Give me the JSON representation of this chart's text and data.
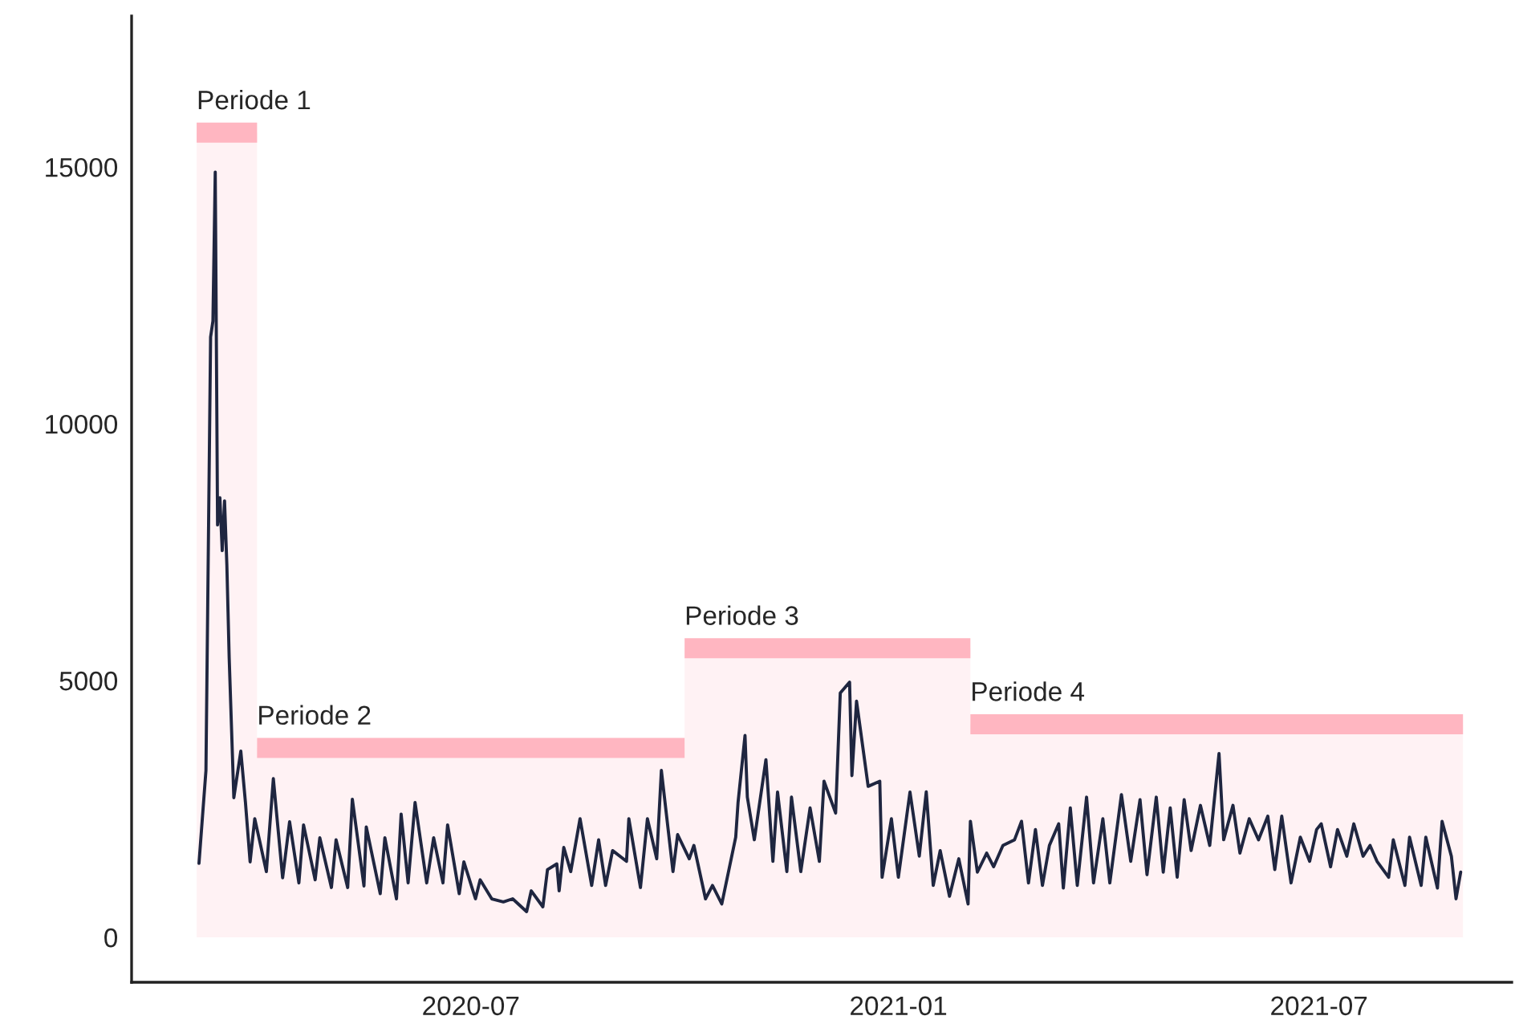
{
  "chart_data": {
    "type": "line",
    "xlim": [
      "2020-02-06",
      "2021-09-22"
    ],
    "xticks": [
      {
        "value": "2020-07-01",
        "label": "2020-07"
      },
      {
        "value": "2021-01-01",
        "label": "2021-01"
      },
      {
        "value": "2021-07-01",
        "label": "2021-07"
      }
    ],
    "ylim": [
      -875,
      17940
    ],
    "yticks": [
      0,
      5000,
      10000,
      15000
    ],
    "grid": false,
    "legend": false,
    "annotations": [
      {
        "text": "Periode 1",
        "x": "2020-03-05",
        "y": 15670
      },
      {
        "text": "Periode 2",
        "x": "2020-03-31",
        "y": 3690
      },
      {
        "text": "Periode 3",
        "x": "2020-10-01",
        "y": 5630
      },
      {
        "text": "Periode 4",
        "x": "2021-02-01",
        "y": 4150
      }
    ],
    "series": [
      {
        "type": "area",
        "color": "#ffb6c1",
        "x": [
          "2020-03-05",
          "2020-03-31",
          "2020-03-31",
          "2020-10-01",
          "2020-10-01",
          "2021-02-01",
          "2021-02-01",
          "2021-09-01"
        ],
        "values": [
          15670,
          15670,
          3690,
          3690,
          5630,
          5630,
          4150,
          4150
        ]
      },
      {
        "color": "#1f2640",
        "x": [
          "2020-03-06",
          "2020-03-09",
          "2020-03-11",
          "2020-03-12",
          "2020-03-13",
          "2020-03-14",
          "2020-03-15",
          "2020-03-16",
          "2020-03-17",
          "2020-03-18",
          "2020-03-19",
          "2020-03-21",
          "2020-03-24",
          "2020-03-26",
          "2020-03-28",
          "2020-03-30",
          "2020-04-01",
          "2020-04-04",
          "2020-04-07",
          "2020-04-11",
          "2020-04-14",
          "2020-04-18",
          "2020-04-20",
          "2020-04-25",
          "2020-04-27",
          "2020-05-02",
          "2020-05-04",
          "2020-05-09",
          "2020-05-11",
          "2020-05-16",
          "2020-05-17",
          "2020-05-23",
          "2020-05-25",
          "2020-05-30",
          "2020-06-01",
          "2020-06-04",
          "2020-06-07",
          "2020-06-12",
          "2020-06-15",
          "2020-06-19",
          "2020-06-21",
          "2020-06-26",
          "2020-06-28",
          "2020-07-03",
          "2020-07-05",
          "2020-07-10",
          "2020-07-15",
          "2020-07-19",
          "2020-07-25",
          "2020-07-27",
          "2020-08-01",
          "2020-08-03",
          "2020-08-07",
          "2020-08-08",
          "2020-08-10",
          "2020-08-13",
          "2020-08-17",
          "2020-08-22",
          "2020-08-25",
          "2020-08-28",
          "2020-08-31",
          "2020-09-06",
          "2020-09-07",
          "2020-09-12",
          "2020-09-15",
          "2020-09-19",
          "2020-09-21",
          "2020-09-26",
          "2020-09-28",
          "2020-10-03",
          "2020-10-05",
          "2020-10-10",
          "2020-10-13",
          "2020-10-17",
          "2020-10-23",
          "2020-10-24",
          "2020-10-27",
          "2020-10-28",
          "2020-10-31",
          "2020-11-05",
          "2020-11-08",
          "2020-11-10",
          "2020-11-14",
          "2020-11-16",
          "2020-11-20",
          "2020-11-24",
          "2020-11-28",
          "2020-11-30",
          "2020-12-05",
          "2020-12-07",
          "2020-12-11",
          "2020-12-12",
          "2020-12-14",
          "2020-12-19",
          "2020-12-24",
          "2020-12-25",
          "2020-12-29",
          "2021-01-01",
          "2021-01-06",
          "2021-01-10",
          "2021-01-13",
          "2021-01-16",
          "2021-01-19",
          "2021-01-23",
          "2021-01-27",
          "2021-01-31",
          "2021-02-01",
          "2021-02-04",
          "2021-02-08",
          "2021-02-11",
          "2021-02-15",
          "2021-02-20",
          "2021-02-23",
          "2021-02-26",
          "2021-03-01",
          "2021-03-04",
          "2021-03-07",
          "2021-03-11",
          "2021-03-13",
          "2021-03-16",
          "2021-03-19",
          "2021-03-23",
          "2021-03-26",
          "2021-03-30",
          "2021-04-02",
          "2021-04-07",
          "2021-04-11",
          "2021-04-15",
          "2021-04-18",
          "2021-04-22",
          "2021-04-25",
          "2021-04-28",
          "2021-05-01",
          "2021-05-04",
          "2021-05-07",
          "2021-05-11",
          "2021-05-15",
          "2021-05-19",
          "2021-05-21",
          "2021-05-25",
          "2021-05-28",
          "2021-06-01",
          "2021-06-05",
          "2021-06-09",
          "2021-06-12",
          "2021-06-15",
          "2021-06-19",
          "2021-06-23",
          "2021-06-27",
          "2021-06-30",
          "2021-07-02",
          "2021-07-06",
          "2021-07-09",
          "2021-07-13",
          "2021-07-16",
          "2021-07-20",
          "2021-07-23",
          "2021-07-26",
          "2021-07-31",
          "2021-08-02",
          "2021-08-07",
          "2021-08-09",
          "2021-08-14",
          "2021-08-16",
          "2021-08-21",
          "2021-08-23",
          "2021-08-27",
          "2021-08-29",
          "2021-08-31"
        ],
        "values": [
          1440,
          3250,
          11690,
          12000,
          14900,
          8030,
          8560,
          7530,
          8500,
          7250,
          5440,
          2720,
          3625,
          2625,
          1470,
          2310,
          1900,
          1280,
          3090,
          1160,
          2250,
          1060,
          2190,
          1120,
          1940,
          970,
          1900,
          970,
          2690,
          1000,
          2150,
          850,
          1940,
          750,
          2400,
          1060,
          2625,
          1060,
          1940,
          1060,
          2190,
          850,
          1470,
          750,
          1120,
          750,
          690,
          750,
          500,
          906,
          594,
          1320,
          1430,
          906,
          1750,
          1280,
          2310,
          1010,
          1900,
          1010,
          1690,
          1480,
          2310,
          970,
          2310,
          1530,
          3250,
          1280,
          2000,
          1530,
          1790,
          750,
          1010,
          650,
          1950,
          2625,
          3930,
          2730,
          1900,
          3460,
          1480,
          2830,
          1280,
          2730,
          1280,
          2520,
          1480,
          3040,
          2420,
          4760,
          4970,
          3150,
          4600,
          2940,
          3040,
          1170,
          2310,
          1170,
          2830,
          1583,
          2833,
          1010,
          1690,
          800,
          1530,
          650,
          2260,
          1270,
          1640,
          1375,
          1790,
          1900,
          2260,
          1060,
          2100,
          1010,
          1790,
          2210,
          960,
          2520,
          1010,
          2730,
          1060,
          2310,
          1060,
          2780,
          1480,
          2680,
          1220,
          2730,
          1270,
          2520,
          1170,
          2680,
          1690,
          2570,
          1790,
          3580,
          1900,
          2570,
          1640,
          2310,
          1900,
          2360,
          1320,
          2360,
          1060,
          1950,
          1480,
          2100,
          2210,
          1375,
          2100,
          1580,
          2210,
          1580,
          1790,
          1480,
          1170,
          1900,
          1010,
          1950,
          1010,
          1950,
          960,
          2260,
          1580,
          750,
          1270
        ]
      }
    ]
  }
}
